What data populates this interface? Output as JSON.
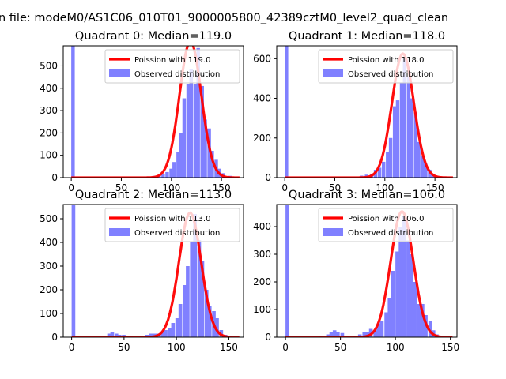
{
  "suptitle": "n file: modeM0/AS1C06_010T01_9000005800_42389cztM0_level2_quad_clean",
  "colors": {
    "fit": "#ff0000",
    "hist": "#8080ff",
    "axis": "#000000"
  },
  "chart_data": [
    {
      "type": "bar",
      "title": "Quadrant 0: Median=119.0",
      "xlim": [
        -8,
        172
      ],
      "ylim": [
        0,
        590
      ],
      "xticks": [
        0,
        50,
        100,
        150
      ],
      "yticks": [
        0,
        100,
        200,
        300,
        400,
        500
      ],
      "legend_position": "top-right",
      "series": [
        {
          "name": "Poission with 119.0",
          "kind": "line",
          "mu": 119.0,
          "peak": 610,
          "sigma": 10.9
        },
        {
          "name": "Observed distribution",
          "kind": "hist",
          "bin_width": 3.5,
          "bins": [
            [
              0,
              590
            ],
            [
              75,
              5
            ],
            [
              81,
              8
            ],
            [
              86,
              10
            ],
            [
              90,
              15
            ],
            [
              94,
              25
            ],
            [
              98,
              40
            ],
            [
              101,
              70
            ],
            [
              105,
              115
            ],
            [
              108,
              200
            ],
            [
              111,
              355
            ],
            [
              115,
              420
            ],
            [
              118,
              485
            ],
            [
              122,
              420
            ],
            [
              125,
              580
            ],
            [
              129,
              410
            ],
            [
              132,
              260
            ],
            [
              136,
              220
            ],
            [
              139,
              120
            ],
            [
              143,
              80
            ],
            [
              146,
              40
            ],
            [
              150,
              20
            ],
            [
              157,
              8
            ],
            [
              162,
              2
            ]
          ]
        }
      ]
    },
    {
      "type": "bar",
      "title": "Quadrant 1: Median=118.0",
      "xlim": [
        -8,
        172
      ],
      "ylim": [
        0,
        665
      ],
      "xticks": [
        0,
        50,
        100,
        150
      ],
      "yticks": [
        0,
        200,
        400,
        600
      ],
      "legend_position": "top-right",
      "series": [
        {
          "name": "Poission with 118.0",
          "kind": "line",
          "mu": 118.0,
          "peak": 625,
          "sigma": 10.9
        },
        {
          "name": "Observed distribution",
          "kind": "hist",
          "bin_width": 3.5,
          "bins": [
            [
              0,
              665
            ],
            [
              75,
              10
            ],
            [
              80,
              15
            ],
            [
              85,
              20
            ],
            [
              89,
              40
            ],
            [
              93,
              50
            ],
            [
              97,
              80
            ],
            [
              101,
              130
            ],
            [
              104,
              200
            ],
            [
              108,
              360
            ],
            [
              111,
              390
            ],
            [
              115,
              480
            ],
            [
              118,
              600
            ],
            [
              122,
              510
            ],
            [
              125,
              400
            ],
            [
              129,
              330
            ],
            [
              132,
              180
            ],
            [
              136,
              110
            ],
            [
              139,
              70
            ],
            [
              143,
              40
            ],
            [
              146,
              20
            ],
            [
              150,
              10
            ],
            [
              155,
              5
            ]
          ]
        }
      ]
    },
    {
      "type": "bar",
      "title": "Quadrant 2: Median=113.0",
      "xlim": [
        -8,
        164
      ],
      "ylim": [
        0,
        560
      ],
      "xticks": [
        0,
        50,
        100,
        150
      ],
      "yticks": [
        0,
        100,
        200,
        300,
        400,
        500
      ],
      "legend_position": "top-right",
      "series": [
        {
          "name": "Poission with 113.0",
          "kind": "line",
          "mu": 113.0,
          "peak": 525,
          "sigma": 10.6
        },
        {
          "name": "Observed distribution",
          "kind": "hist",
          "bin_width": 3.5,
          "bins": [
            [
              0,
              560
            ],
            [
              34,
              15
            ],
            [
              37,
              20
            ],
            [
              41,
              15
            ],
            [
              44,
              10
            ],
            [
              48,
              10
            ],
            [
              55,
              5
            ],
            [
              65,
              5
            ],
            [
              70,
              10
            ],
            [
              74,
              15
            ],
            [
              78,
              15
            ],
            [
              81,
              15
            ],
            [
              85,
              20
            ],
            [
              88,
              30
            ],
            [
              92,
              40
            ],
            [
              95,
              60
            ],
            [
              99,
              80
            ],
            [
              102,
              140
            ],
            [
              106,
              220
            ],
            [
              109,
              300
            ],
            [
              113,
              400
            ],
            [
              116,
              520
            ],
            [
              120,
              410
            ],
            [
              123,
              320
            ],
            [
              127,
              200
            ],
            [
              130,
              130
            ],
            [
              134,
              110
            ],
            [
              137,
              80
            ],
            [
              141,
              30
            ],
            [
              145,
              10
            ],
            [
              150,
              5
            ]
          ]
        }
      ]
    },
    {
      "type": "bar",
      "title": "Quadrant 3: Median=106.0",
      "xlim": [
        -8,
        156
      ],
      "ylim": [
        0,
        480
      ],
      "xticks": [
        0,
        50,
        100,
        150
      ],
      "yticks": [
        0,
        100,
        200,
        300,
        400
      ],
      "legend_position": "top-right",
      "series": [
        {
          "name": "Poission with 106.0",
          "kind": "line",
          "mu": 106.0,
          "peak": 455,
          "sigma": 10.3
        },
        {
          "name": "Observed distribution",
          "kind": "hist",
          "bin_width": 3.3,
          "bins": [
            [
              0,
              480
            ],
            [
              30,
              5
            ],
            [
              37,
              10
            ],
            [
              40,
              20
            ],
            [
              43,
              25
            ],
            [
              46,
              20
            ],
            [
              50,
              15
            ],
            [
              55,
              5
            ],
            [
              62,
              5
            ],
            [
              66,
              10
            ],
            [
              70,
              20
            ],
            [
              73,
              20
            ],
            [
              76,
              30
            ],
            [
              80,
              25
            ],
            [
              83,
              50
            ],
            [
              86,
              60
            ],
            [
              90,
              90
            ],
            [
              93,
              140
            ],
            [
              96,
              240
            ],
            [
              100,
              310
            ],
            [
              103,
              400
            ],
            [
              106,
              440
            ],
            [
              110,
              350
            ],
            [
              113,
              300
            ],
            [
              116,
              200
            ],
            [
              120,
              120
            ],
            [
              123,
              120
            ],
            [
              126,
              80
            ],
            [
              130,
              60
            ],
            [
              133,
              25
            ],
            [
              136,
              10
            ],
            [
              140,
              5
            ]
          ]
        }
      ]
    }
  ]
}
